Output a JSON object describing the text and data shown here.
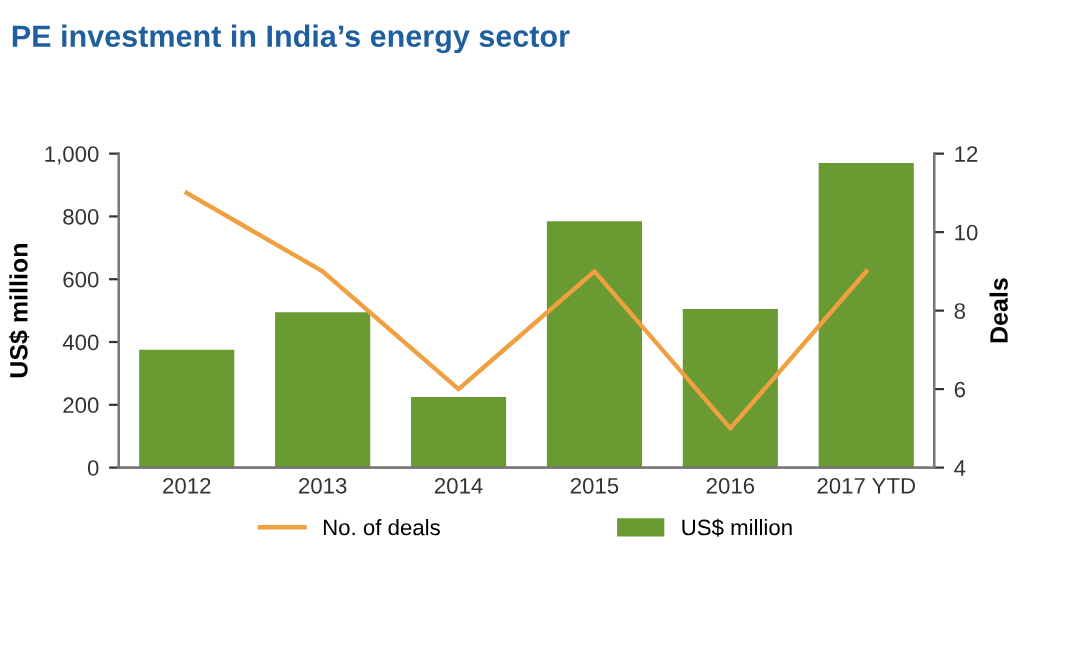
{
  "chart_data": {
    "type": "bar",
    "title": "PE investment in India’s energy sector",
    "categories": [
      "2012",
      "2013",
      "2014",
      "2015",
      "2016",
      "2017 YTD"
    ],
    "series": [
      {
        "name": "US$ million",
        "color": "#6a9a32",
        "values": [
          375,
          495,
          225,
          785,
          505,
          970
        ]
      },
      {
        "name": "No. of deals",
        "type": "line",
        "axis": "y2",
        "color": "#f0a040",
        "values": [
          11,
          9,
          6,
          9,
          5,
          9
        ]
      }
    ],
    "ylabel": "US$ million",
    "y2label": "Deals",
    "ylim": [
      0,
      1000
    ],
    "yticks": [
      0,
      200,
      400,
      600,
      800,
      {
        "value": 1000,
        "label": "1,000"
      }
    ],
    "y2lim": [
      4,
      12
    ],
    "y2ticks": [
      4,
      6,
      8,
      10,
      12
    ],
    "legend": "bottom",
    "grid": false,
    "marker": "none",
    "line_style": "solid"
  }
}
